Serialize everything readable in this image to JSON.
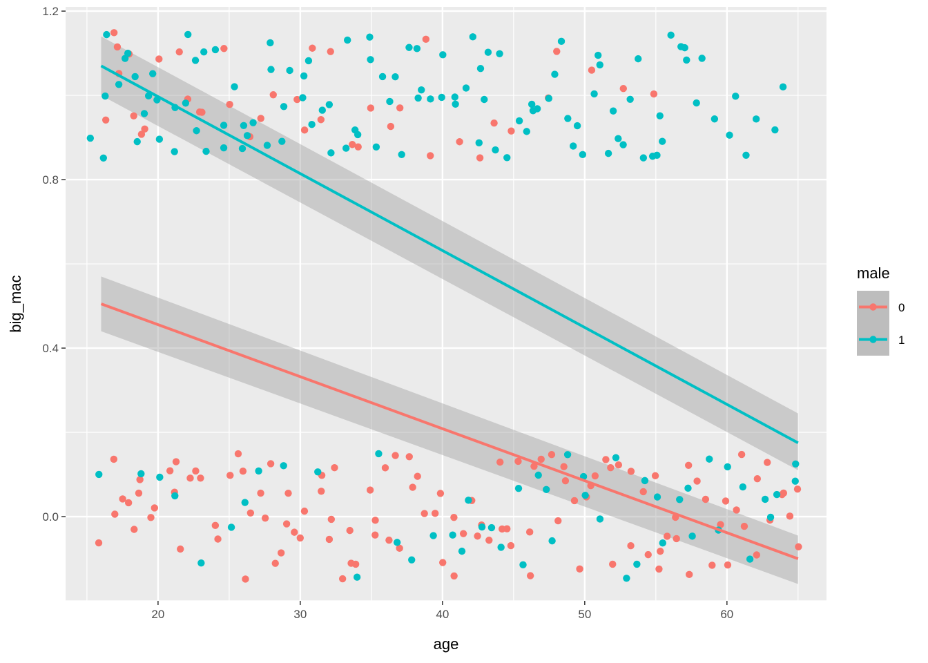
{
  "chart_data": {
    "type": "scatter",
    "title": "",
    "xlabel": "age",
    "ylabel": "big_mac",
    "xlim": [
      13.5,
      67
    ],
    "ylim": [
      -0.2,
      1.21
    ],
    "x_ticks": [
      20,
      30,
      40,
      50,
      60
    ],
    "x_tick_labels": [
      "20",
      "30",
      "40",
      "50",
      "60"
    ],
    "y_ticks": [
      0.0,
      0.4,
      0.8,
      1.2
    ],
    "y_tick_labels": [
      "0.0",
      "0.4",
      "0.8",
      "1.2"
    ],
    "grid": true,
    "background": "#ebebeb",
    "jitter": {
      "x": 0.4,
      "y": 0.15
    },
    "legend": {
      "title": "male",
      "position": "right"
    },
    "series": [
      {
        "name": "0",
        "color": "#F8766D",
        "fit": {
          "x": [
            16,
            65
          ],
          "y": [
            0.505,
            -0.1
          ],
          "se_low": [
            0.44,
            -0.16
          ],
          "se_high": [
            0.57,
            -0.045
          ]
        },
        "points": {
          "y1_ages": [
            16.2,
            16.8,
            17.1,
            17.4,
            17.8,
            18.1,
            18.6,
            19.0,
            20.3,
            21.2,
            22.4,
            22.9,
            23.1,
            24.3,
            25.1,
            26.2,
            27.5,
            28.2,
            29.4,
            30.1,
            30.9,
            31.2,
            32.1,
            33.5,
            34.0,
            34.8,
            36.2,
            37.1,
            38.9,
            39.2,
            41.4,
            42.5,
            43.8,
            44.9,
            47.2,
            48.0,
            50.4,
            53.1,
            54.9
          ],
          "y0_ages": [
            15.7,
            16.9,
            17.2,
            17.6,
            17.9,
            18.2,
            18.4,
            18.9,
            19.1,
            20.0,
            20.7,
            21.1,
            21.6,
            21.9,
            22.3,
            22.8,
            23.2,
            24.1,
            24.6,
            24.9,
            25.4,
            25.9,
            26.3,
            26.7,
            27.1,
            27.4,
            27.8,
            28.1,
            28.6,
            28.9,
            29.3,
            29.7,
            30.2,
            30.6,
            31.1,
            31.5,
            31.8,
            32.2,
            32.7,
            33.1,
            33.4,
            33.9,
            34.2,
            34.7,
            35.1,
            35.5,
            35.9,
            36.3,
            36.8,
            37.2,
            37.6,
            38.1,
            38.4,
            38.9,
            39.3,
            39.7,
            40.2,
            40.6,
            41.1,
            41.5,
            41.9,
            42.4,
            42.8,
            43.2,
            43.7,
            44.1,
            44.5,
            44.9,
            45.4,
            45.8,
            46.2,
            46.7,
            47.1,
            47.5,
            47.9,
            48.4,
            48.8,
            49.2,
            49.6,
            50.1,
            50.5,
            50.9,
            51.3,
            51.8,
            52.2,
            52.6,
            53.0,
            53.4,
            53.9,
            54.3,
            54.7,
            55.1,
            55.5,
            56.0,
            56.4,
            56.8,
            57.2,
            57.6,
            58.1,
            58.5,
            58.9,
            59.3,
            59.8,
            60.2,
            60.6,
            61.0,
            61.4,
            61.9,
            62.3,
            62.7,
            63.1,
            63.5,
            64.0,
            64.4,
            64.8,
            65.2
          ]
        }
      },
      {
        "name": "1",
        "color": "#00BFC4",
        "fit": {
          "x": [
            16,
            65
          ],
          "y": [
            1.07,
            0.175
          ],
          "se_low": [
            1.0,
            0.11
          ],
          "se_high": [
            1.14,
            0.245
          ]
        },
        "points": {
          "y1_ages": [
            15.6,
            16.0,
            16.3,
            16.7,
            17.0,
            17.3,
            17.7,
            18.0,
            18.4,
            18.8,
            19.2,
            19.6,
            20.0,
            20.4,
            20.8,
            21.2,
            21.6,
            22.0,
            22.4,
            22.8,
            23.2,
            23.6,
            24.1,
            24.5,
            24.9,
            25.3,
            25.8,
            26.2,
            26.6,
            27.0,
            27.4,
            27.9,
            28.3,
            28.7,
            29.1,
            29.5,
            30.0,
            30.4,
            30.8,
            31.2,
            31.7,
            32.1,
            32.5,
            32.9,
            33.3,
            33.8,
            34.2,
            34.6,
            35.0,
            35.5,
            35.9,
            36.3,
            36.7,
            37.1,
            37.6,
            38.0,
            38.4,
            38.8,
            39.3,
            39.7,
            40.1,
            40.5,
            41.0,
            41.4,
            41.8,
            42.2,
            42.6,
            43.1,
            43.5,
            43.9,
            44.3,
            44.8,
            45.2,
            45.6,
            46.0,
            46.5,
            46.9,
            47.3,
            47.7,
            48.2,
            48.6,
            49.0,
            49.4,
            49.9,
            50.3,
            50.7,
            51.1,
            51.6,
            52.0,
            52.4,
            52.8,
            53.3,
            53.7,
            54.1,
            54.5,
            55.0,
            55.4,
            55.8,
            56.2,
            56.7,
            57.1,
            57.5,
            57.9,
            58.4,
            58.8,
            60.1,
            60.5,
            61.3,
            62.2,
            63.1,
            64.2
          ],
          "y0_ages": [
            15.6,
            18.7,
            20.4,
            21.5,
            22.8,
            25.1,
            25.8,
            27.3,
            29.0,
            31.1,
            33.8,
            35.2,
            36.6,
            38.1,
            39.6,
            40.4,
            41.2,
            42.0,
            42.7,
            43.5,
            44.3,
            45.0,
            45.8,
            46.6,
            47.3,
            48.1,
            48.8,
            49.6,
            50.3,
            51.1,
            51.8,
            52.6,
            53.3,
            54.1,
            54.8,
            55.6,
            56.3,
            57.1,
            57.8,
            58.6,
            59.3,
            60.1,
            60.8,
            61.6,
            62.3,
            63.1,
            63.8,
            64.5,
            65.0
          ]
        }
      }
    ]
  }
}
